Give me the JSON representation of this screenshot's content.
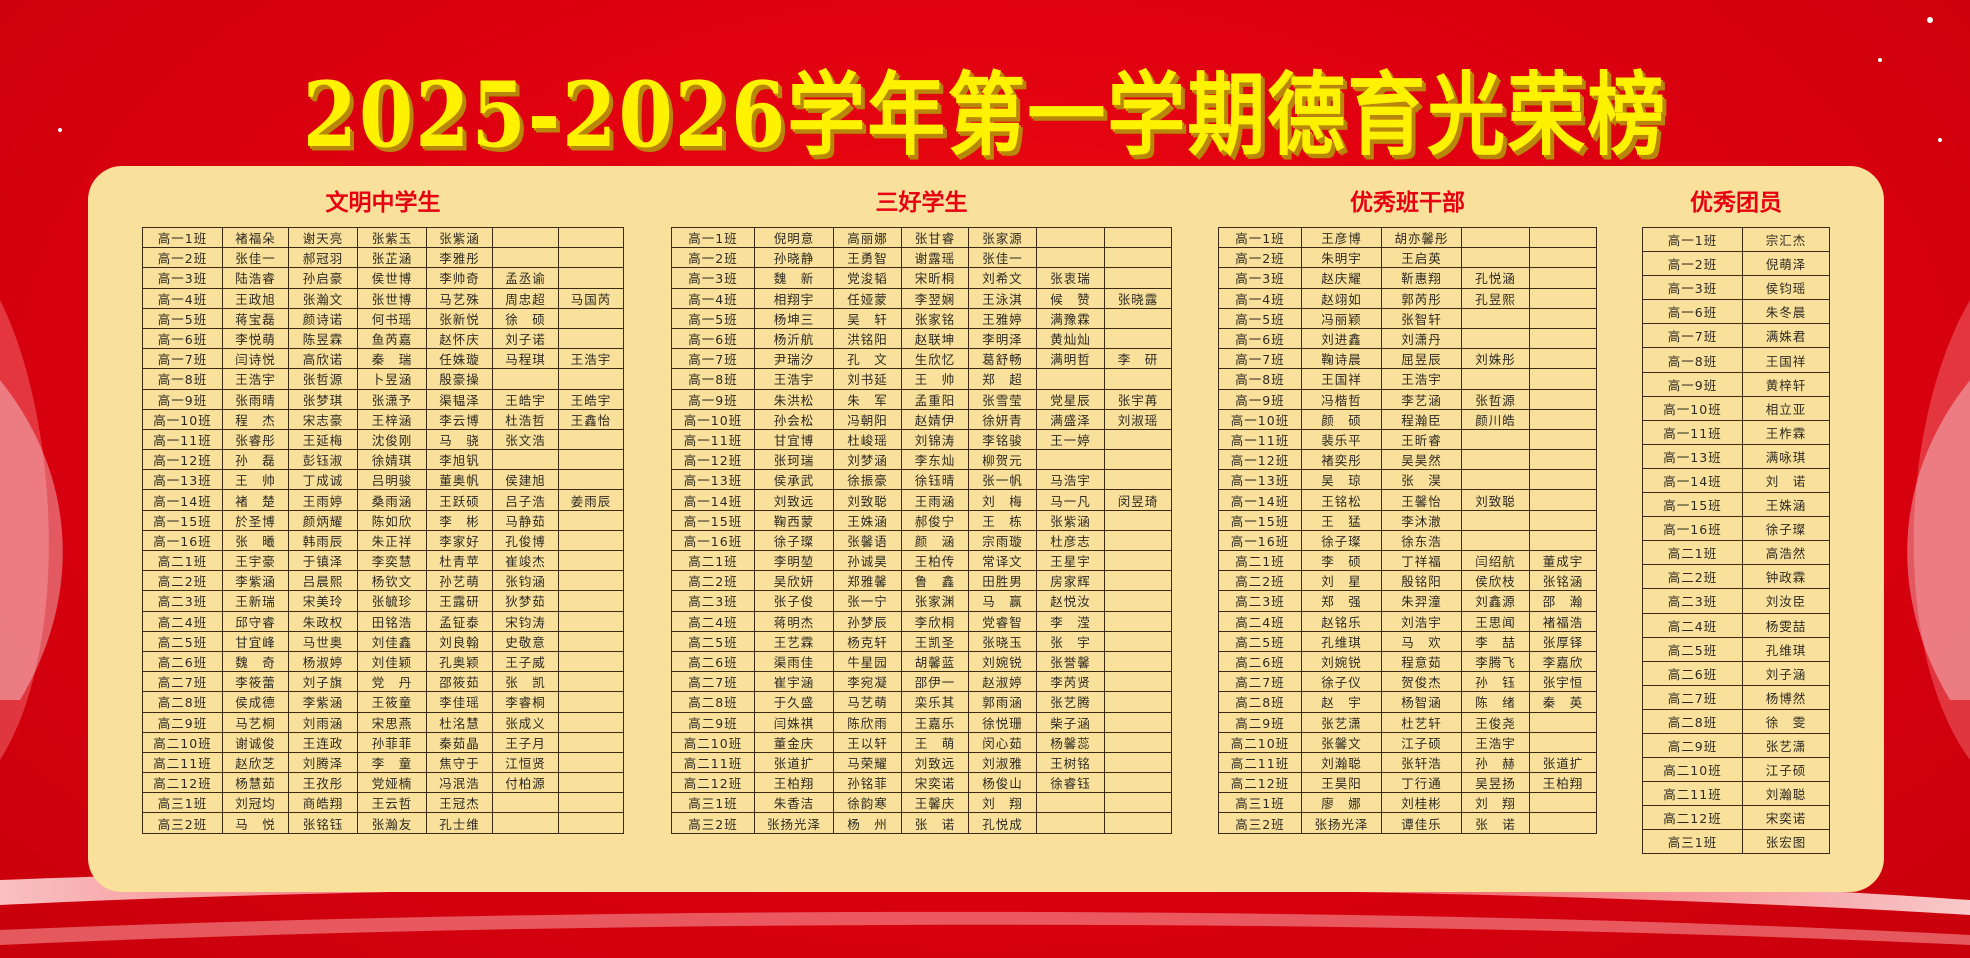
{
  "title": "2025-2026学年第一学期德育光荣榜",
  "colors": {
    "background": "#e00010",
    "title": "#fff200",
    "panel": "#f9e19b",
    "heading": "#e60012"
  },
  "sections": [
    {
      "heading": "文明中学生",
      "rows": [
        [
          "高一1班",
          "褚福朵",
          "谢天亮",
          "张紫玉",
          "张紫涵",
          "",
          ""
        ],
        [
          "高一2班",
          "张佳一",
          "郝冠羽",
          "张芷涵",
          "李雅彤",
          "",
          ""
        ],
        [
          "高一3班",
          "陆浩睿",
          "孙启豪",
          "侯世博",
          "李帅奇",
          "孟丞谕",
          ""
        ],
        [
          "高一4班",
          "王政旭",
          "张瀚文",
          "张世博",
          "马艺殊",
          "周忠超",
          "马国芮"
        ],
        [
          "高一5班",
          "蒋宝磊",
          "颜诗诺",
          "何书瑶",
          "张新悦",
          "徐　硕",
          ""
        ],
        [
          "高一6班",
          "李悦萌",
          "陈昱霖",
          "鱼芮嘉",
          "赵怀庆",
          "刘子诺",
          ""
        ],
        [
          "高一7班",
          "闫诗悦",
          "高欣诺",
          "秦　瑞",
          "任姝璇",
          "马程琪",
          "王浩宇"
        ],
        [
          "高一8班",
          "王浩宇",
          "张哲源",
          "卜昱涵",
          "殷豪操",
          "",
          ""
        ],
        [
          "高一9班",
          "张雨晴",
          "张梦琪",
          "张潇予",
          "渠韫泽",
          "王皓宇",
          "王皓宇"
        ],
        [
          "高一10班",
          "程　杰",
          "宋志豪",
          "王梓涵",
          "李云博",
          "杜浩哲",
          "王鑫怡"
        ],
        [
          "高一11班",
          "张睿彤",
          "王延梅",
          "沈俊刚",
          "马　骁",
          "张文浩",
          ""
        ],
        [
          "高一12班",
          "孙　磊",
          "彭钰淑",
          "徐婧琪",
          "李旭钒",
          "",
          ""
        ],
        [
          "高一13班",
          "王　帅",
          "丁成诚",
          "吕明骏",
          "董奥帆",
          "侯建旭",
          ""
        ],
        [
          "高一14班",
          "褚　楚",
          "王雨婷",
          "桑雨涵",
          "王跃硕",
          "吕子浩",
          "姜雨辰"
        ],
        [
          "高一15班",
          "於圣博",
          "颜炳耀",
          "陈如欣",
          "李　彬",
          "马静茹",
          ""
        ],
        [
          "高一16班",
          "张　曦",
          "韩雨辰",
          "朱正祥",
          "李家好",
          "孔俊博",
          ""
        ],
        [
          "高二1班",
          "王宇豪",
          "于镇泽",
          "李奕慧",
          "杜青苹",
          "崔竣杰",
          ""
        ],
        [
          "高二2班",
          "李紫涵",
          "吕晨熙",
          "杨钦文",
          "孙艺萌",
          "张钧涵",
          ""
        ],
        [
          "高二3班",
          "王新瑞",
          "宋美玲",
          "张毓珍",
          "王露研",
          "狄梦茹",
          ""
        ],
        [
          "高二4班",
          "邱守睿",
          "朱政权",
          "田铭浩",
          "孟钲泰",
          "宋钧涛",
          ""
        ],
        [
          "高二5班",
          "甘宜峰",
          "马世奥",
          "刘佳鑫",
          "刘良翰",
          "史敬意",
          ""
        ],
        [
          "高二6班",
          "魏　奇",
          "杨淑婷",
          "刘佳颖",
          "孔奥颖",
          "王子威",
          ""
        ],
        [
          "高二7班",
          "李筱蕾",
          "刘子旗",
          "党　丹",
          "邵筱茹",
          "张　凯",
          ""
        ],
        [
          "高二8班",
          "侯成德",
          "李紫涵",
          "王筱童",
          "李佳瑶",
          "李睿桐",
          ""
        ],
        [
          "高二9班",
          "马艺桐",
          "刘雨涵",
          "宋思燕",
          "杜洺慧",
          "张成义",
          ""
        ],
        [
          "高二10班",
          "谢诚俊",
          "王连政",
          "孙菲菲",
          "秦茹晶",
          "王子月",
          ""
        ],
        [
          "高二11班",
          "赵欣芝",
          "刘腾泽",
          "李　童",
          "焦守于",
          "江恒贤",
          ""
        ],
        [
          "高二12班",
          "杨慧茹",
          "王孜彤",
          "党娅楠",
          "冯泯浩",
          "付柏源",
          ""
        ],
        [
          "高三1班",
          "刘冠均",
          "商皓翔",
          "王云哲",
          "王冠杰",
          "",
          ""
        ],
        [
          "高三2班",
          "马　悦",
          "张铭钰",
          "张瀚友",
          "孔士维",
          "",
          ""
        ]
      ]
    },
    {
      "heading": "三好学生",
      "rows": [
        [
          "高一1班",
          "倪明意",
          "高丽娜",
          "张甘睿",
          "张家源",
          "",
          ""
        ],
        [
          "高一2班",
          "孙晓静",
          "王勇智",
          "谢露瑶",
          "张佳一",
          "",
          ""
        ],
        [
          "高一3班",
          "魏　新",
          "党浚韬",
          "宋昕桐",
          "刘希文",
          "张衷瑞",
          ""
        ],
        [
          "高一4班",
          "相翔宇",
          "任娅蒙",
          "李翌娴",
          "王泳淇",
          "候　赞",
          "张晓露"
        ],
        [
          "高一5班",
          "杨坤三",
          "吴　轩",
          "张家铭",
          "王雅婷",
          "满豫霖",
          ""
        ],
        [
          "高一6班",
          "杨沂航",
          "洪铭阳",
          "赵联坤",
          "李明泽",
          "黄灿灿",
          ""
        ],
        [
          "高一7班",
          "尹瑞汐",
          "孔　文",
          "生欣忆",
          "葛舒畅",
          "满明哲",
          "李　研"
        ],
        [
          "高一8班",
          "王浩宇",
          "刘书延",
          "王　帅",
          "郑　超",
          "",
          ""
        ],
        [
          "高一9班",
          "朱洪松",
          "朱　军",
          "孟重阳",
          "张雪莹",
          "党星辰",
          "张宇苒"
        ],
        [
          "高一10班",
          "孙会松",
          "冯朝阳",
          "赵婧伊",
          "徐妍青",
          "满盛泽",
          "刘淑瑶"
        ],
        [
          "高一11班",
          "甘宜博",
          "杜峻瑶",
          "刘锦涛",
          "李铭骏",
          "王一婷",
          ""
        ],
        [
          "高一12班",
          "张珂瑞",
          "刘梦涵",
          "李东灿",
          "柳贺元",
          "",
          ""
        ],
        [
          "高一13班",
          "侯承武",
          "徐振豪",
          "徐钰晴",
          "张一帆",
          "马浩宇",
          ""
        ],
        [
          "高一14班",
          "刘致远",
          "刘致聪",
          "王雨涵",
          "刘　梅",
          "马一凡",
          "闵昱琦"
        ],
        [
          "高一15班",
          "鞠西蒙",
          "王姝涵",
          "郝俊宁",
          "王　栋",
          "张紫涵",
          ""
        ],
        [
          "高一16班",
          "徐子璨",
          "张馨语",
          "颜　涵",
          "宗雨璇",
          "杜彦志",
          ""
        ],
        [
          "高二1班",
          "李明堃",
          "孙诚昊",
          "王柏传",
          "常译文",
          "王星宇",
          ""
        ],
        [
          "高二2班",
          "吴欣妍",
          "郑雅馨",
          "鲁　鑫",
          "田胜男",
          "房家辉",
          ""
        ],
        [
          "高二3班",
          "张子俊",
          "张一宁",
          "张家渊",
          "马　赢",
          "赵悦汝",
          ""
        ],
        [
          "高二4班",
          "蒋明杰",
          "孙梦辰",
          "李欣桐",
          "党睿智",
          "李　滢",
          ""
        ],
        [
          "高二5班",
          "王艺霖",
          "杨克轩",
          "王凯圣",
          "张晓玉",
          "张　宇",
          ""
        ],
        [
          "高二6班",
          "渠雨佳",
          "牛星园",
          "胡馨蓝",
          "刘婉锐",
          "张誉馨",
          ""
        ],
        [
          "高二7班",
          "崔宇涵",
          "李宛凝",
          "邵伊一",
          "赵淑婷",
          "李芮贤",
          ""
        ],
        [
          "高二8班",
          "于久盛",
          "马艺萌",
          "栾乐其",
          "郭雨涵",
          "张艺腾",
          ""
        ],
        [
          "高二9班",
          "闫姝祺",
          "陈欣雨",
          "王嘉乐",
          "徐悦珊",
          "柴子涵",
          ""
        ],
        [
          "高二10班",
          "董金庆",
          "王以轩",
          "王　萌",
          "闵心茹",
          "杨馨蕊",
          ""
        ],
        [
          "高二11班",
          "张道扩",
          "马荣耀",
          "刘致远",
          "刘淑雅",
          "王树铭",
          ""
        ],
        [
          "高二12班",
          "王柏翔",
          "孙铭菲",
          "宋奕诺",
          "杨俊山",
          "徐睿钰",
          ""
        ],
        [
          "高三1班",
          "朱香洁",
          "徐韵寒",
          "王馨庆",
          "刘　翔",
          "",
          ""
        ],
        [
          "高三2班",
          "张扬光泽",
          "杨　州",
          "张　诺",
          "孔悦成",
          "",
          ""
        ]
      ]
    },
    {
      "heading": "优秀班干部",
      "rows": [
        [
          "高一1班",
          "王彦博",
          "胡亦馨彤",
          "",
          ""
        ],
        [
          "高一2班",
          "朱明宇",
          "王启英",
          "",
          ""
        ],
        [
          "高一3班",
          "赵庆耀",
          "靳惠翔",
          "孔悦涵",
          ""
        ],
        [
          "高一4班",
          "赵翊如",
          "郭芮彤",
          "孔昱熙",
          ""
        ],
        [
          "高一5班",
          "冯丽颖",
          "张智轩",
          "",
          ""
        ],
        [
          "高一6班",
          "刘进鑫",
          "刘潇丹",
          "",
          ""
        ],
        [
          "高一7班",
          "鞠诗晨",
          "屈昱辰",
          "刘姝彤",
          ""
        ],
        [
          "高一8班",
          "王国祥",
          "王浩宇",
          "",
          ""
        ],
        [
          "高一9班",
          "冯楷哲",
          "李艺涵",
          "张哲源",
          ""
        ],
        [
          "高一10班",
          "颜　硕",
          "程瀚臣",
          "颜川皓",
          ""
        ],
        [
          "高一11班",
          "裴乐平",
          "王昕睿",
          "",
          ""
        ],
        [
          "高一12班",
          "褚奕彤",
          "吴昊然",
          "",
          ""
        ],
        [
          "高一13班",
          "吴　琼",
          "张　淏",
          "",
          ""
        ],
        [
          "高一14班",
          "王铭松",
          "王馨怡",
          "刘致聪",
          ""
        ],
        [
          "高一15班",
          "王　猛",
          "李沐澈",
          "",
          ""
        ],
        [
          "高一16班",
          "徐子璨",
          "徐东浩",
          "",
          ""
        ],
        [
          "高二1班",
          "李　硕",
          "丁祥福",
          "闫绍航",
          "董成宇"
        ],
        [
          "高二2班",
          "刘　星",
          "殷铭阳",
          "侯欣枝",
          "张铭涵"
        ],
        [
          "高二3班",
          "郑　强",
          "朱羿潼",
          "刘鑫源",
          "邵　瀚"
        ],
        [
          "高二4班",
          "赵铭乐",
          "刘浩宇",
          "王思闻",
          "褚福浩"
        ],
        [
          "高二5班",
          "孔维琪",
          "马　欢",
          "李　喆",
          "张厚铎"
        ],
        [
          "高二6班",
          "刘婉锐",
          "程意茹",
          "李腾飞",
          "李嘉欣"
        ],
        [
          "高二7班",
          "徐子仪",
          "贺俊杰",
          "孙　钰",
          "张宇恒"
        ],
        [
          "高二8班",
          "赵　宇",
          "杨智涵",
          "陈　绪",
          "秦　英"
        ],
        [
          "高二9班",
          "张艺潇",
          "杜艺轩",
          "王俊尧",
          ""
        ],
        [
          "高二10班",
          "张馨文",
          "江子硕",
          "王浩宇",
          ""
        ],
        [
          "高二11班",
          "刘瀚聪",
          "张轩浩",
          "孙　赫",
          "张道扩"
        ],
        [
          "高二12班",
          "王昊阳",
          "丁行通",
          "吴昱扬",
          "王柏翔"
        ],
        [
          "高三1班",
          "廖　娜",
          "刘桂彬",
          "刘　翔",
          ""
        ],
        [
          "高三2班",
          "张扬光泽",
          "谭佳乐",
          "张　诺",
          ""
        ]
      ]
    },
    {
      "heading": "优秀团员",
      "rows": [
        [
          "高一1班",
          "宗汇杰"
        ],
        [
          "高一2班",
          "倪萌泽"
        ],
        [
          "高一3班",
          "侯钧瑶"
        ],
        [
          "高一6班",
          "朱冬晨"
        ],
        [
          "高一7班",
          "满姝君"
        ],
        [
          "高一8班",
          "王国祥"
        ],
        [
          "高一9班",
          "黄梓轩"
        ],
        [
          "高一10班",
          "相立亚"
        ],
        [
          "高一11班",
          "王柞霖"
        ],
        [
          "高一13班",
          "满咏琪"
        ],
        [
          "高一14班",
          "刘　诺"
        ],
        [
          "高一15班",
          "王姝涵"
        ],
        [
          "高一16班",
          "徐子璨"
        ],
        [
          "高二1班",
          "高浩然"
        ],
        [
          "高二2班",
          "钟政霖"
        ],
        [
          "高二3班",
          "刘汝臣"
        ],
        [
          "高二4班",
          "杨雯喆"
        ],
        [
          "高二5班",
          "孔维琪"
        ],
        [
          "高二6班",
          "刘子涵"
        ],
        [
          "高二7班",
          "杨博然"
        ],
        [
          "高二8班",
          "徐　雯"
        ],
        [
          "高二9班",
          "张艺潇"
        ],
        [
          "高二10班",
          "江子硕"
        ],
        [
          "高二11班",
          "刘瀚聪"
        ],
        [
          "高二12班",
          "宋奕诺"
        ],
        [
          "高三1班",
          "张宏图"
        ]
      ]
    }
  ]
}
